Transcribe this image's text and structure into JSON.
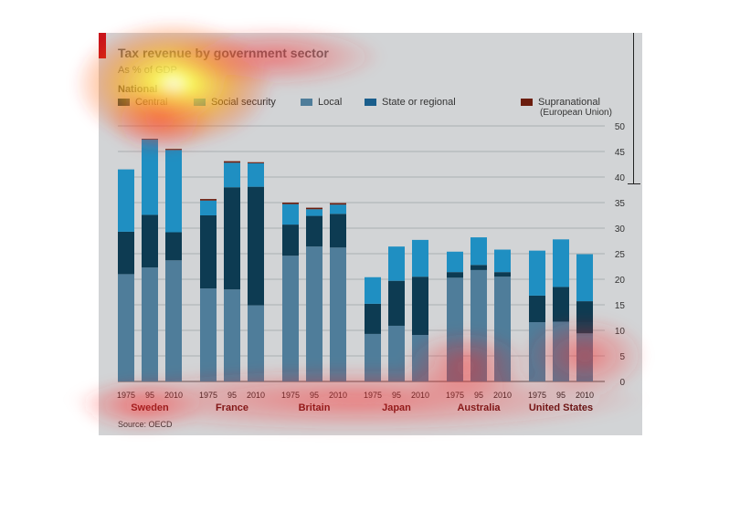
{
  "title": "Tax revenue by government sector",
  "subtitle": "As % of GDP",
  "legend": {
    "national_label": "National",
    "items": [
      {
        "label": "Central",
        "color": "#0d3b52"
      },
      {
        "label": "Social security",
        "color": "#1f8fc2"
      },
      {
        "label": "Local",
        "color": "#4f7d9a"
      },
      {
        "label": "State or regional",
        "color": "#1a5e8c"
      },
      {
        "label": "Supranational",
        "color": "#6b1d0e"
      }
    ],
    "supranational_sub": "(European Union)"
  },
  "source": "Source: OECD",
  "chart_data": {
    "type": "bar",
    "stacked": true,
    "ylim": [
      0,
      50
    ],
    "yticks": [
      0,
      5,
      10,
      15,
      20,
      25,
      30,
      35,
      40,
      45,
      50
    ],
    "year_labels": [
      "1975",
      "95",
      "2010"
    ],
    "country_groups": [
      "Sweden",
      "France",
      "Britain",
      "Japan",
      "Australia",
      "United States"
    ],
    "series_order": [
      "Local",
      "State or regional",
      "Central",
      "Social security",
      "Supranational"
    ],
    "bars": [
      {
        "country": "Sweden",
        "year": "1975",
        "Local": 21.0,
        "State or regional": 0,
        "Central": 8.3,
        "Social security": 12.2,
        "Supranational": 0
      },
      {
        "country": "Sweden",
        "year": "95",
        "Local": 22.3,
        "State or regional": 0,
        "Central": 10.3,
        "Social security": 14.8,
        "Supranational": 0.1
      },
      {
        "country": "Sweden",
        "year": "2010",
        "Local": 23.7,
        "State or regional": 0,
        "Central": 5.5,
        "Social security": 16.1,
        "Supranational": 0.2
      },
      {
        "country": "France",
        "year": "1975",
        "Local": 18.2,
        "State or regional": 0,
        "Central": 14.3,
        "Social security": 2.9,
        "Supranational": 0.3
      },
      {
        "country": "France",
        "year": "95",
        "Local": 18.0,
        "State or regional": 0,
        "Central": 20.0,
        "Social security": 4.8,
        "Supranational": 0.3
      },
      {
        "country": "France",
        "year": "2010",
        "Local": 14.9,
        "State or regional": 0,
        "Central": 23.2,
        "Social security": 4.6,
        "Supranational": 0.2
      },
      {
        "country": "Britain",
        "year": "1975",
        "Local": 24.6,
        "State or regional": 0,
        "Central": 6.1,
        "Social security": 4.0,
        "Supranational": 0.3
      },
      {
        "country": "Britain",
        "year": "95",
        "Local": 26.4,
        "State or regional": 0,
        "Central": 6.0,
        "Social security": 1.3,
        "Supranational": 0.3
      },
      {
        "country": "Britain",
        "year": "2010",
        "Local": 26.2,
        "State or regional": 0,
        "Central": 6.6,
        "Social security": 1.8,
        "Supranational": 0.3
      },
      {
        "country": "Japan",
        "year": "1975",
        "Local": 9.3,
        "State or regional": 0,
        "Central": 5.9,
        "Social security": 5.2,
        "Supranational": 0
      },
      {
        "country": "Japan",
        "year": "95",
        "Local": 10.9,
        "State or regional": 0,
        "Central": 8.8,
        "Social security": 6.7,
        "Supranational": 0
      },
      {
        "country": "Japan",
        "year": "2010",
        "Local": 9.1,
        "State or regional": 0,
        "Central": 11.4,
        "Social security": 7.2,
        "Supranational": 0
      },
      {
        "country": "Australia",
        "year": "1975",
        "Local": 20.3,
        "State or regional": 0,
        "Central": 1.1,
        "Social security": 4.0,
        "Supranational": 0
      },
      {
        "country": "Australia",
        "year": "95",
        "Local": 21.8,
        "State or regional": 0,
        "Central": 1.0,
        "Social security": 5.4,
        "Supranational": 0
      },
      {
        "country": "Australia",
        "year": "2010",
        "Local": 20.5,
        "State or regional": 0,
        "Central": 0.9,
        "Social security": 4.4,
        "Supranational": 0
      },
      {
        "country": "United States",
        "year": "1975",
        "Local": 11.6,
        "State or regional": 0,
        "Central": 5.2,
        "Social security": 8.8,
        "Supranational": 0
      },
      {
        "country": "United States",
        "year": "95",
        "Local": 11.7,
        "State or regional": 0,
        "Central": 6.8,
        "Social security": 9.3,
        "Supranational": 0
      },
      {
        "country": "United States",
        "year": "2010",
        "Local": 9.4,
        "State or regional": 0,
        "Central": 6.3,
        "Social security": 9.2,
        "Supranational": 0
      }
    ]
  }
}
